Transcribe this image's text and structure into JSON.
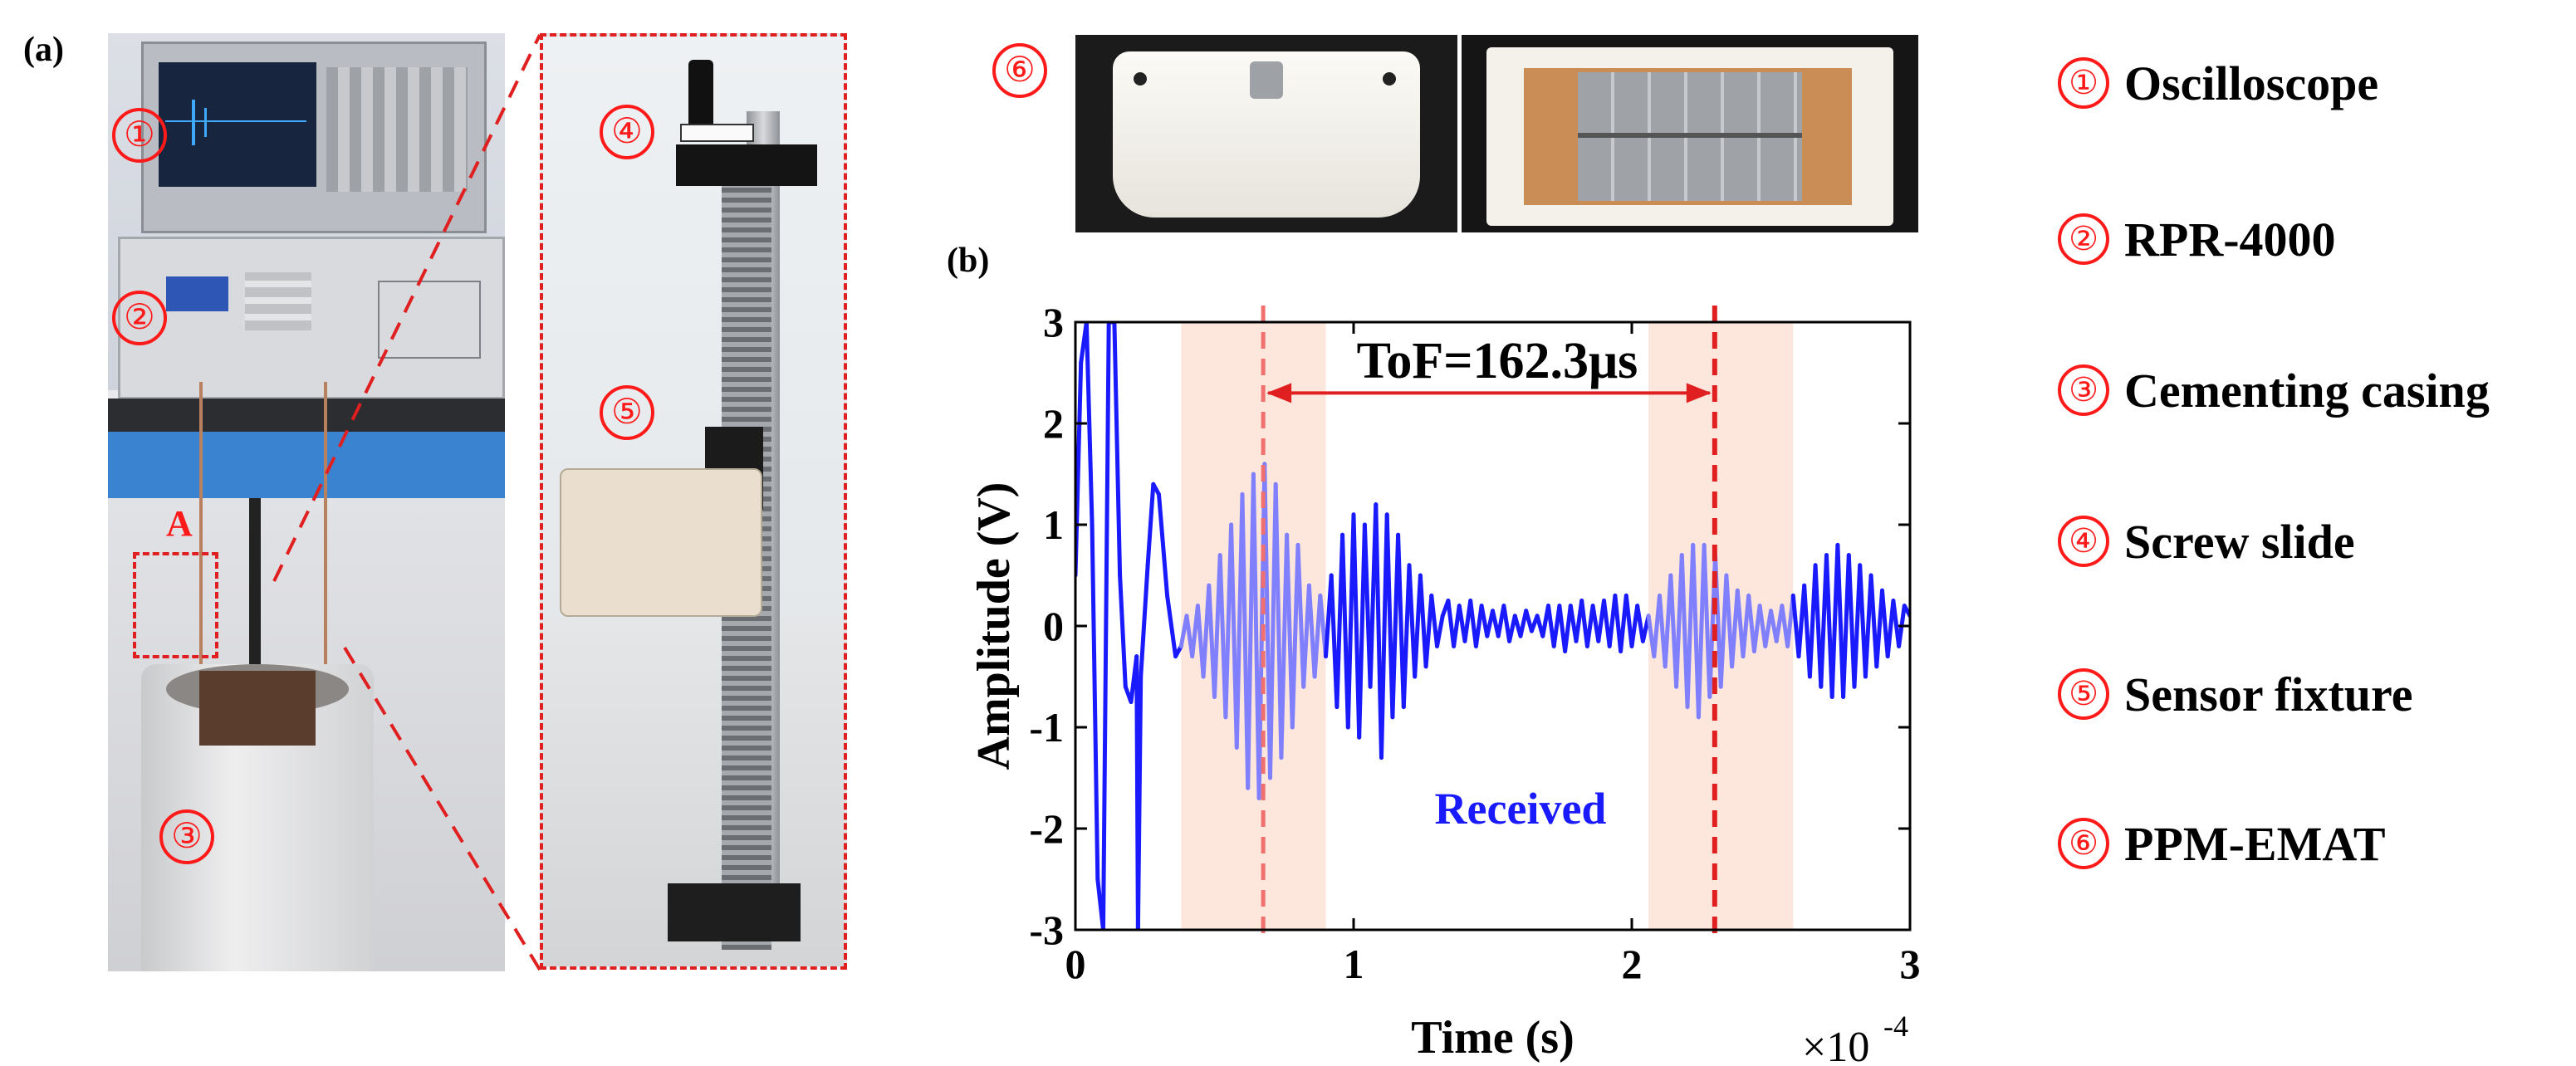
{
  "panels": {
    "a": "(a)",
    "b": "(b)"
  },
  "photo_labels": {
    "oscilloscope": "①",
    "pulser": "②",
    "casing": "③",
    "screw": "④",
    "fixture": "⑤",
    "emat": "⑥",
    "region": "A"
  },
  "legend": [
    {
      "num": "①",
      "text": "Oscilloscope"
    },
    {
      "num": "②",
      "text": "RPR-4000"
    },
    {
      "num": "③",
      "text": "Cementing casing"
    },
    {
      "num": "④",
      "text": "Screw slide"
    },
    {
      "num": "⑤",
      "text": "Sensor fixture"
    },
    {
      "num": "⑥",
      "text": "PPM-EMAT"
    }
  ],
  "colors": {
    "signal": "#1a1aff",
    "signal_highlight": "#8080ff",
    "marker": "#e02020",
    "marker_light": "#f07070",
    "band": "#fde6dc",
    "label_red": "#ff1a1a"
  },
  "chart_data": {
    "type": "line",
    "xlabel": "Time (s)",
    "ylabel": "Amplitude (V)",
    "x_multiplier": "×10",
    "x_multiplier_exp": "-4",
    "xlim": [
      0,
      3
    ],
    "ylim": [
      -3,
      3
    ],
    "xticks": [
      "0",
      "1",
      "2",
      "3"
    ],
    "yticks": [
      "3",
      "2",
      "1",
      "0",
      "-1",
      "-2",
      "-3"
    ],
    "series": [
      {
        "name": "Received",
        "color": "#1a1aff"
      }
    ],
    "series_label": "Received",
    "tof_text": "ToF=162.3μs",
    "tof_start": 0.675,
    "tof_end": 2.298,
    "bands": [
      [
        0.38,
        0.9
      ],
      [
        2.06,
        2.58
      ]
    ],
    "waveform": [
      [
        0.0,
        0.5
      ],
      [
        0.02,
        2.6
      ],
      [
        0.04,
        3.0
      ],
      [
        0.06,
        1.0
      ],
      [
        0.08,
        -2.5
      ],
      [
        0.1,
        -3.0
      ],
      [
        0.12,
        3.0
      ],
      [
        0.14,
        3.0
      ],
      [
        0.16,
        0.5
      ],
      [
        0.18,
        -0.6
      ],
      [
        0.2,
        -0.75
      ],
      [
        0.22,
        -0.3
      ],
      [
        0.225,
        -3.0
      ],
      [
        0.235,
        -0.5
      ],
      [
        0.26,
        0.6
      ],
      [
        0.28,
        1.4
      ],
      [
        0.3,
        1.3
      ],
      [
        0.33,
        0.3
      ],
      [
        0.36,
        -0.3
      ],
      [
        0.38,
        -0.2
      ],
      [
        0.4,
        0.1
      ],
      [
        0.42,
        -0.3
      ],
      [
        0.44,
        0.2
      ],
      [
        0.46,
        -0.5
      ],
      [
        0.48,
        0.4
      ],
      [
        0.5,
        -0.7
      ],
      [
        0.52,
        0.7
      ],
      [
        0.54,
        -0.9
      ],
      [
        0.56,
        1.0
      ],
      [
        0.58,
        -1.2
      ],
      [
        0.6,
        1.3
      ],
      [
        0.62,
        -1.6
      ],
      [
        0.64,
        1.5
      ],
      [
        0.66,
        -1.7
      ],
      [
        0.68,
        1.6
      ],
      [
        0.7,
        -1.5
      ],
      [
        0.72,
        1.4
      ],
      [
        0.74,
        -1.3
      ],
      [
        0.76,
        0.9
      ],
      [
        0.78,
        -1.0
      ],
      [
        0.8,
        0.8
      ],
      [
        0.82,
        -0.6
      ],
      [
        0.84,
        0.4
      ],
      [
        0.86,
        -0.5
      ],
      [
        0.88,
        0.3
      ],
      [
        0.9,
        -0.3
      ],
      [
        0.92,
        0.5
      ],
      [
        0.94,
        -0.8
      ],
      [
        0.96,
        0.9
      ],
      [
        0.98,
        -1.0
      ],
      [
        1.0,
        1.1
      ],
      [
        1.02,
        -1.1
      ],
      [
        1.04,
        1.0
      ],
      [
        1.06,
        -0.6
      ],
      [
        1.08,
        1.2
      ],
      [
        1.1,
        -1.3
      ],
      [
        1.12,
        1.1
      ],
      [
        1.14,
        -0.9
      ],
      [
        1.16,
        0.9
      ],
      [
        1.18,
        -0.8
      ],
      [
        1.2,
        0.6
      ],
      [
        1.22,
        -0.5
      ],
      [
        1.24,
        0.5
      ],
      [
        1.26,
        -0.4
      ],
      [
        1.28,
        0.3
      ],
      [
        1.3,
        -0.2
      ],
      [
        1.32,
        0.1
      ],
      [
        1.34,
        0.25
      ],
      [
        1.36,
        -0.2
      ],
      [
        1.38,
        0.2
      ],
      [
        1.4,
        -0.15
      ],
      [
        1.42,
        0.25
      ],
      [
        1.44,
        -0.2
      ],
      [
        1.46,
        0.2
      ],
      [
        1.48,
        -0.1
      ],
      [
        1.5,
        0.15
      ],
      [
        1.52,
        -0.1
      ],
      [
        1.54,
        0.2
      ],
      [
        1.56,
        -0.15
      ],
      [
        1.58,
        0.1
      ],
      [
        1.6,
        -0.1
      ],
      [
        1.62,
        0.15
      ],
      [
        1.64,
        -0.05
      ],
      [
        1.66,
        0.1
      ],
      [
        1.68,
        -0.1
      ],
      [
        1.7,
        0.2
      ],
      [
        1.72,
        -0.2
      ],
      [
        1.74,
        0.2
      ],
      [
        1.76,
        -0.25
      ],
      [
        1.78,
        0.2
      ],
      [
        1.8,
        -0.15
      ],
      [
        1.82,
        0.25
      ],
      [
        1.84,
        -0.2
      ],
      [
        1.86,
        0.2
      ],
      [
        1.88,
        -0.15
      ],
      [
        1.9,
        0.25
      ],
      [
        1.92,
        -0.2
      ],
      [
        1.94,
        0.3
      ],
      [
        1.96,
        -0.25
      ],
      [
        1.98,
        0.3
      ],
      [
        2.0,
        -0.2
      ],
      [
        2.02,
        0.2
      ],
      [
        2.04,
        -0.15
      ],
      [
        2.06,
        0.1
      ],
      [
        2.08,
        -0.3
      ],
      [
        2.1,
        0.3
      ],
      [
        2.12,
        -0.4
      ],
      [
        2.14,
        0.5
      ],
      [
        2.16,
        -0.6
      ],
      [
        2.18,
        0.7
      ],
      [
        2.2,
        -0.8
      ],
      [
        2.22,
        0.8
      ],
      [
        2.24,
        -0.9
      ],
      [
        2.26,
        0.8
      ],
      [
        2.28,
        -0.7
      ],
      [
        2.3,
        0.7
      ],
      [
        2.32,
        -0.6
      ],
      [
        2.34,
        0.5
      ],
      [
        2.36,
        -0.4
      ],
      [
        2.38,
        0.35
      ],
      [
        2.4,
        -0.3
      ],
      [
        2.42,
        0.3
      ],
      [
        2.44,
        -0.25
      ],
      [
        2.46,
        0.2
      ],
      [
        2.48,
        -0.2
      ],
      [
        2.5,
        0.15
      ],
      [
        2.52,
        -0.15
      ],
      [
        2.54,
        0.2
      ],
      [
        2.56,
        -0.2
      ],
      [
        2.58,
        0.3
      ],
      [
        2.6,
        -0.3
      ],
      [
        2.62,
        0.4
      ],
      [
        2.64,
        -0.5
      ],
      [
        2.66,
        0.6
      ],
      [
        2.68,
        -0.6
      ],
      [
        2.7,
        0.7
      ],
      [
        2.72,
        -0.7
      ],
      [
        2.74,
        0.8
      ],
      [
        2.76,
        -0.7
      ],
      [
        2.78,
        0.7
      ],
      [
        2.8,
        -0.6
      ],
      [
        2.82,
        0.6
      ],
      [
        2.84,
        -0.5
      ],
      [
        2.86,
        0.5
      ],
      [
        2.88,
        -0.4
      ],
      [
        2.9,
        0.35
      ],
      [
        2.92,
        -0.3
      ],
      [
        2.94,
        0.25
      ],
      [
        2.96,
        -0.2
      ],
      [
        2.98,
        0.2
      ],
      [
        3.0,
        0.1
      ]
    ]
  }
}
